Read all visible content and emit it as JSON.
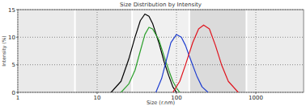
{
  "chart_data": {
    "type": "line",
    "title": "Size Distribution by Intensity",
    "x_label": "Size (r.nm)",
    "y_label": "Intensity (%)",
    "log": "x",
    "grid": true,
    "xlim": [
      1,
      4000
    ],
    "xticks": [
      1,
      10,
      100,
      1000
    ],
    "ylim": [
      0,
      15
    ],
    "yticks": [
      0,
      5,
      10,
      15
    ],
    "series": [
      {
        "color": "#000000",
        "x": [
          15,
          20,
          25,
          30,
          35,
          40,
          45,
          50,
          60,
          70,
          80,
          90,
          100
        ],
        "values": [
          0,
          2,
          6,
          10,
          13,
          14.2,
          13.8,
          12.5,
          9,
          5.5,
          3,
          1,
          0
        ]
      },
      {
        "color": "#2ca02c",
        "x": [
          20,
          25,
          30,
          35,
          40,
          45,
          50,
          60,
          70,
          80,
          90,
          100,
          110
        ],
        "values": [
          0,
          1.5,
          4,
          7.5,
          10.5,
          11.8,
          11.5,
          9.5,
          6.5,
          4,
          2,
          0.8,
          0
        ]
      },
      {
        "color": "#1f3fd0",
        "x": [
          55,
          65,
          75,
          85,
          100,
          115,
          130,
          150,
          180,
          210,
          250
        ],
        "values": [
          0,
          2.5,
          6,
          9,
          10.5,
          10,
          8.5,
          6,
          3,
          1,
          0
        ]
      },
      {
        "color": "#e0141e",
        "x": [
          90,
          110,
          130,
          160,
          190,
          220,
          260,
          310,
          370,
          450,
          600
        ],
        "values": [
          0,
          2,
          5,
          9,
          11.5,
          12.2,
          11.5,
          8.5,
          5,
          2,
          0
        ]
      }
    ]
  }
}
